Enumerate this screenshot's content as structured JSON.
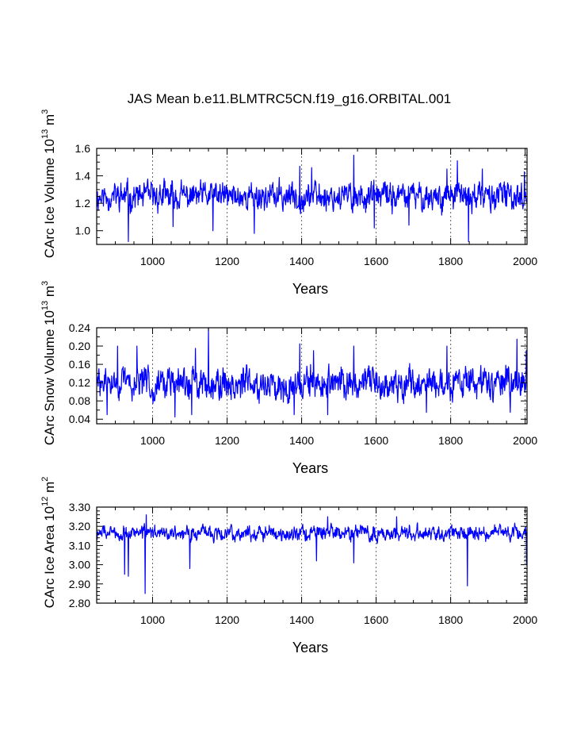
{
  "title": "JAS Mean b.e11.BLMTRC5CN.f19_g16.ORBITAL.001",
  "chart_data": [
    {
      "type": "line",
      "ylabel": "CArc Ice Volume 10",
      "ylabel_exp": "13",
      "ylabel_unit": " m",
      "ylabel_unit_exp": "3",
      "xlabel": "Years",
      "xlim": [
        850,
        2005
      ],
      "ylim": [
        0.9,
        1.6
      ],
      "xticks": [
        1000,
        1200,
        1400,
        1600,
        1800,
        2000
      ],
      "yticks": [
        1.0,
        1.2,
        1.4,
        1.6
      ],
      "ytick_labels": [
        "1.0",
        "1.2",
        "1.4",
        "1.6"
      ],
      "yminor": [
        0.9,
        0.95,
        1.05,
        1.1,
        1.15,
        1.25,
        1.3,
        1.35,
        1.45,
        1.5,
        1.55
      ],
      "gridlines_x": [
        1000,
        1200,
        1400,
        1600,
        1800,
        2000
      ],
      "series": [
        {
          "name": "ice_volume",
          "color": "#0000ff",
          "mean": 1.25,
          "amp": 0.075,
          "seed": 11,
          "spikes": [
            [
              935,
              0.92
            ],
            [
              1055,
              1.03
            ],
            [
              1162,
              1.0
            ],
            [
              1273,
              0.98
            ],
            [
              1395,
              1.47
            ],
            [
              1427,
              1.46
            ],
            [
              1540,
              1.55
            ],
            [
              1595,
              1.02
            ],
            [
              1688,
              1.04
            ],
            [
              1790,
              1.45
            ],
            [
              1818,
              1.51
            ],
            [
              1848,
              0.92
            ],
            [
              1885,
              1.45
            ],
            [
              1998,
              1.43
            ]
          ]
        }
      ]
    },
    {
      "type": "line",
      "ylabel": "CArc Snow Volume 10",
      "ylabel_exp": "13",
      "ylabel_unit": " m",
      "ylabel_unit_exp": "3",
      "xlabel": "Years",
      "xlim": [
        850,
        2005
      ],
      "ylim": [
        0.03,
        0.24
      ],
      "xticks": [
        1000,
        1200,
        1400,
        1600,
        1800,
        2000
      ],
      "yticks": [
        0.04,
        0.08,
        0.12,
        0.16,
        0.2,
        0.24
      ],
      "ytick_labels": [
        "0.04",
        "0.08",
        "0.12",
        "0.16",
        "0.20",
        "0.24"
      ],
      "yminor": [
        0.06,
        0.1,
        0.14,
        0.18,
        0.22
      ],
      "gridlines_x": [
        1000,
        1200,
        1400,
        1600,
        1800,
        2000
      ],
      "series": [
        {
          "name": "snow_volume",
          "color": "#0000ff",
          "mean": 0.118,
          "amp": 0.026,
          "seed": 29,
          "spikes": [
            [
              878,
              0.05
            ],
            [
              906,
              0.2
            ],
            [
              958,
              0.2
            ],
            [
              1060,
              0.045
            ],
            [
              1105,
              0.05
            ],
            [
              1115,
              0.195
            ],
            [
              1150,
              0.24
            ],
            [
              1380,
              0.05
            ],
            [
              1395,
              0.205
            ],
            [
              1432,
              0.19
            ],
            [
              1470,
              0.05
            ],
            [
              1540,
              0.2
            ],
            [
              1735,
              0.055
            ],
            [
              1790,
              0.2
            ],
            [
              1960,
              0.055
            ],
            [
              1978,
              0.215
            ],
            [
              2003,
              0.19
            ]
          ]
        }
      ]
    },
    {
      "type": "line",
      "ylabel": "CArc Ice Area 10",
      "ylabel_exp": "12",
      "ylabel_unit": " m",
      "ylabel_unit_exp": "2",
      "xlabel": "Years",
      "xlim": [
        850,
        2005
      ],
      "ylim": [
        2.8,
        3.3
      ],
      "xticks": [
        1000,
        1200,
        1400,
        1600,
        1800,
        2000
      ],
      "yticks": [
        2.8,
        2.9,
        3.0,
        3.1,
        3.2,
        3.3
      ],
      "ytick_labels": [
        "2.80",
        "2.90",
        "3.00",
        "3.10",
        "3.20",
        "3.30"
      ],
      "yminor": [
        2.82,
        2.84,
        2.86,
        2.88,
        2.92,
        2.94,
        2.96,
        2.98,
        3.02,
        3.04,
        3.06,
        3.08,
        3.12,
        3.14,
        3.16,
        3.18,
        3.22,
        3.24,
        3.26,
        3.28
      ],
      "gridlines_x": [
        1000,
        1200,
        1400,
        1600,
        1800,
        2000
      ],
      "series": [
        {
          "name": "ice_area",
          "color": "#0000ff",
          "mean": 3.165,
          "amp": 0.028,
          "seed": 47,
          "spikes": [
            [
              925,
              2.95
            ],
            [
              935,
              2.94
            ],
            [
              980,
              2.85
            ],
            [
              983,
              3.26
            ],
            [
              1100,
              2.98
            ],
            [
              1440,
              3.02
            ],
            [
              1470,
              3.25
            ],
            [
              1540,
              3.01
            ],
            [
              1655,
              3.25
            ],
            [
              1845,
              2.89
            ],
            [
              2004,
              3.0
            ]
          ]
        }
      ]
    }
  ]
}
